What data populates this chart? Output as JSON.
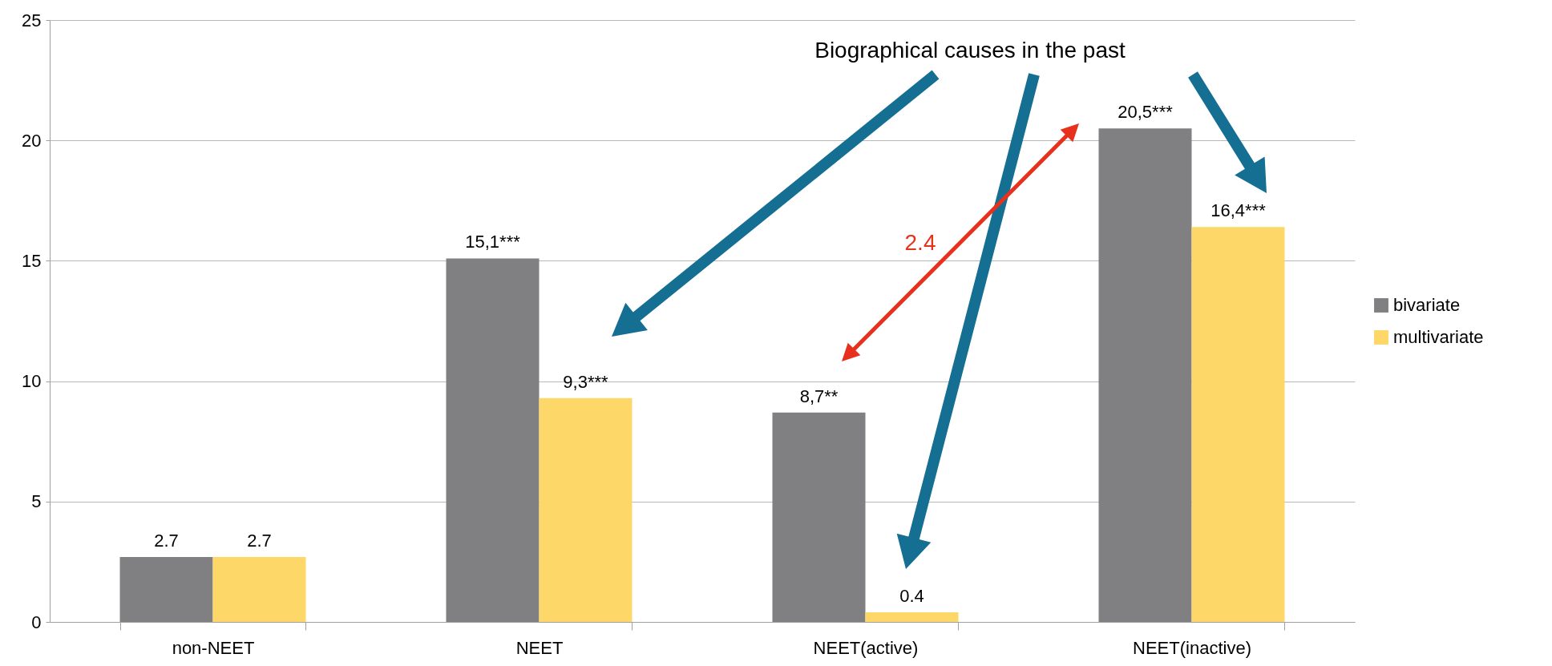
{
  "chart_data": {
    "type": "bar",
    "categories": [
      "non-NEET",
      "NEET",
      "NEET(active)",
      "NEET(inactive)"
    ],
    "series": [
      {
        "name": "bivariate",
        "color": "#808083",
        "values": [
          2.7,
          15.1,
          8.7,
          20.5
        ],
        "value_labels": [
          "2.7",
          "15,1***",
          "8,7**",
          "20,5***"
        ]
      },
      {
        "name": "multivariate",
        "color": "#fdd767",
        "values": [
          2.7,
          9.3,
          0.4,
          16.4
        ],
        "value_labels": [
          "2.7",
          "9,3***",
          "0.4",
          "16,4***"
        ]
      }
    ],
    "ylim": [
      0,
      25
    ],
    "yticks": [
      0,
      5,
      10,
      15,
      20,
      25
    ],
    "grid": "y",
    "legend": "right",
    "annotations": [
      "Biographical causes in the past",
      "2.4"
    ]
  }
}
